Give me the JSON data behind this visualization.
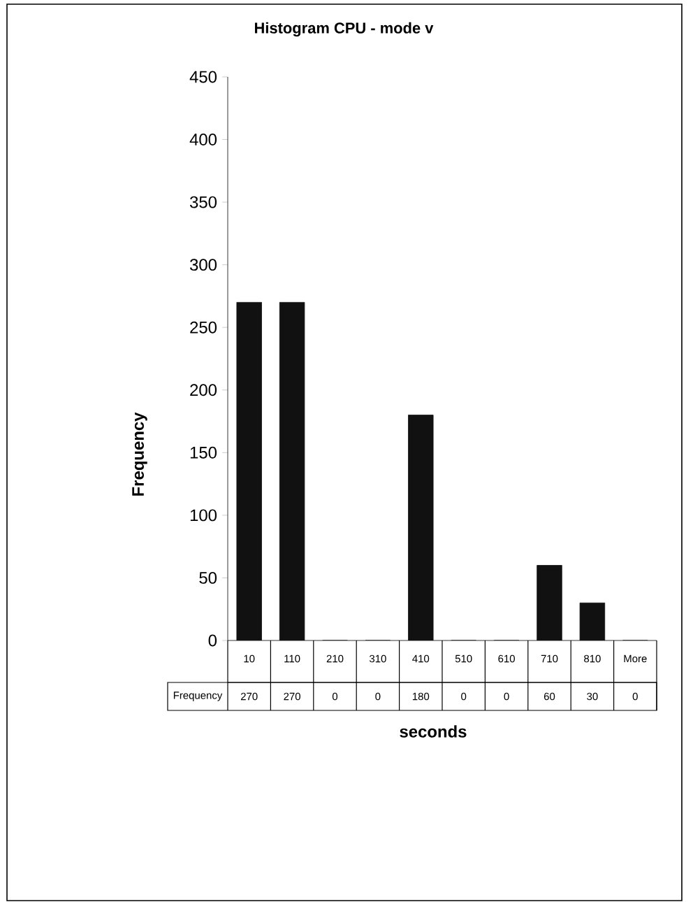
{
  "chart_data": {
    "type": "bar",
    "title": "Histogram CPU - mode v",
    "xlabel": "seconds",
    "ylabel": "Frequency",
    "categories": [
      "10",
      "110",
      "210",
      "310",
      "410",
      "510",
      "610",
      "710",
      "810",
      "More"
    ],
    "series": [
      {
        "name": "Frequency",
        "color": "#111111",
        "values": [
          270,
          270,
          0,
          0,
          180,
          0,
          0,
          60,
          30,
          0
        ]
      }
    ],
    "ylim": [
      0,
      450
    ],
    "yticks": [
      0,
      50,
      100,
      150,
      200,
      250,
      300,
      350,
      400,
      450
    ],
    "data_labels": true,
    "grid": false
  }
}
